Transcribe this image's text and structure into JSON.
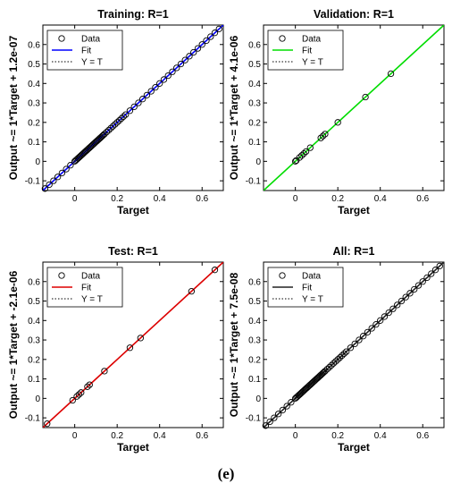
{
  "figure_label": "(e)",
  "chart_data": [
    {
      "type": "scatter",
      "title": "Training: R=1",
      "xlabel": "Target",
      "ylabel": "Output ~= 1*Target + 1.2e-07",
      "xlim": [
        -0.15,
        0.7
      ],
      "ylim": [
        -0.15,
        0.7
      ],
      "xticks": [
        "0",
        "0.2",
        "0.4",
        "0.6"
      ],
      "yticks": [
        "-0.1",
        "0",
        "0.1",
        "0.2",
        "0.3",
        "0.4",
        "0.5",
        "0.6"
      ],
      "legend": [
        "Data",
        "Fit",
        "Y = T"
      ],
      "legend_position": "top-left",
      "fit_color": "#0000ff",
      "fit_label": "Fit",
      "data_points_xy": [
        -0.14,
        -0.12,
        -0.1,
        -0.08,
        -0.06,
        -0.04,
        -0.02,
        0.0,
        0.005,
        0.01,
        0.015,
        0.02,
        0.025,
        0.03,
        0.035,
        0.04,
        0.045,
        0.05,
        0.055,
        0.06,
        0.065,
        0.07,
        0.075,
        0.08,
        0.085,
        0.09,
        0.095,
        0.1,
        0.105,
        0.11,
        0.115,
        0.12,
        0.125,
        0.13,
        0.135,
        0.14,
        0.15,
        0.16,
        0.17,
        0.18,
        0.19,
        0.2,
        0.21,
        0.22,
        0.23,
        0.24,
        0.26,
        0.28,
        0.3,
        0.32,
        0.34,
        0.36,
        0.38,
        0.4,
        0.42,
        0.44,
        0.46,
        0.48,
        0.5,
        0.52,
        0.54,
        0.56,
        0.58,
        0.6,
        0.62,
        0.64,
        0.66,
        0.68
      ]
    },
    {
      "type": "scatter",
      "title": "Validation: R=1",
      "xlabel": "Target",
      "ylabel": "Output ~= 1*Target + 4.1e-06",
      "xlim": [
        -0.15,
        0.7
      ],
      "ylim": [
        -0.15,
        0.7
      ],
      "xticks": [
        "0",
        "0.2",
        "0.4",
        "0.6"
      ],
      "yticks": [
        "-0.1",
        "0",
        "0.1",
        "0.2",
        "0.3",
        "0.4",
        "0.5",
        "0.6"
      ],
      "legend": [
        "Data",
        "Fit",
        "Y = T"
      ],
      "legend_position": "top-left",
      "fit_color": "#00dd00",
      "fit_label": "Fit",
      "data_points_xy": [
        0.0,
        0.005,
        0.02,
        0.03,
        0.04,
        0.05,
        0.07,
        0.12,
        0.13,
        0.14,
        0.2,
        0.33,
        0.45
      ]
    },
    {
      "type": "scatter",
      "title": "Test: R=1",
      "xlabel": "Target",
      "ylabel": "Output ~= 1*Target + -2.1e-06",
      "xlim": [
        -0.15,
        0.7
      ],
      "ylim": [
        -0.15,
        0.7
      ],
      "xticks": [
        "0",
        "0.2",
        "0.4",
        "0.6"
      ],
      "yticks": [
        "-0.1",
        "0",
        "0.1",
        "0.2",
        "0.3",
        "0.4",
        "0.5",
        "0.6"
      ],
      "legend": [
        "Data",
        "Fit",
        "Y = T"
      ],
      "legend_position": "top-left",
      "fit_color": "#dd0000",
      "fit_label": "Fit",
      "data_points_xy": [
        -0.13,
        -0.01,
        0.01,
        0.02,
        0.03,
        0.06,
        0.07,
        0.14,
        0.26,
        0.31,
        0.55,
        0.66
      ]
    },
    {
      "type": "scatter",
      "title": "All: R=1",
      "xlabel": "Target",
      "ylabel": "Output ~= 1*Target + 7.5e-08",
      "xlim": [
        -0.15,
        0.7
      ],
      "ylim": [
        -0.15,
        0.7
      ],
      "xticks": [
        "0",
        "0.2",
        "0.4",
        "0.6"
      ],
      "yticks": [
        "-0.1",
        "0",
        "0.1",
        "0.2",
        "0.3",
        "0.4",
        "0.5",
        "0.6"
      ],
      "legend": [
        "Data",
        "Fit",
        "Y = T"
      ],
      "legend_position": "top-left",
      "fit_color": "#222222",
      "fit_label": "Fit",
      "data_points_xy": [
        -0.14,
        -0.12,
        -0.1,
        -0.08,
        -0.06,
        -0.04,
        -0.02,
        0.0,
        0.005,
        0.01,
        0.015,
        0.02,
        0.025,
        0.03,
        0.035,
        0.04,
        0.045,
        0.05,
        0.055,
        0.06,
        0.065,
        0.07,
        0.075,
        0.08,
        0.085,
        0.09,
        0.095,
        0.1,
        0.105,
        0.11,
        0.115,
        0.12,
        0.125,
        0.13,
        0.135,
        0.14,
        0.15,
        0.16,
        0.17,
        0.18,
        0.19,
        0.2,
        0.21,
        0.22,
        0.23,
        0.24,
        0.26,
        0.28,
        0.3,
        0.32,
        0.34,
        0.36,
        0.38,
        0.4,
        0.42,
        0.44,
        0.46,
        0.48,
        0.5,
        0.52,
        0.54,
        0.56,
        0.58,
        0.6,
        0.62,
        0.64,
        0.66,
        0.68
      ]
    }
  ]
}
